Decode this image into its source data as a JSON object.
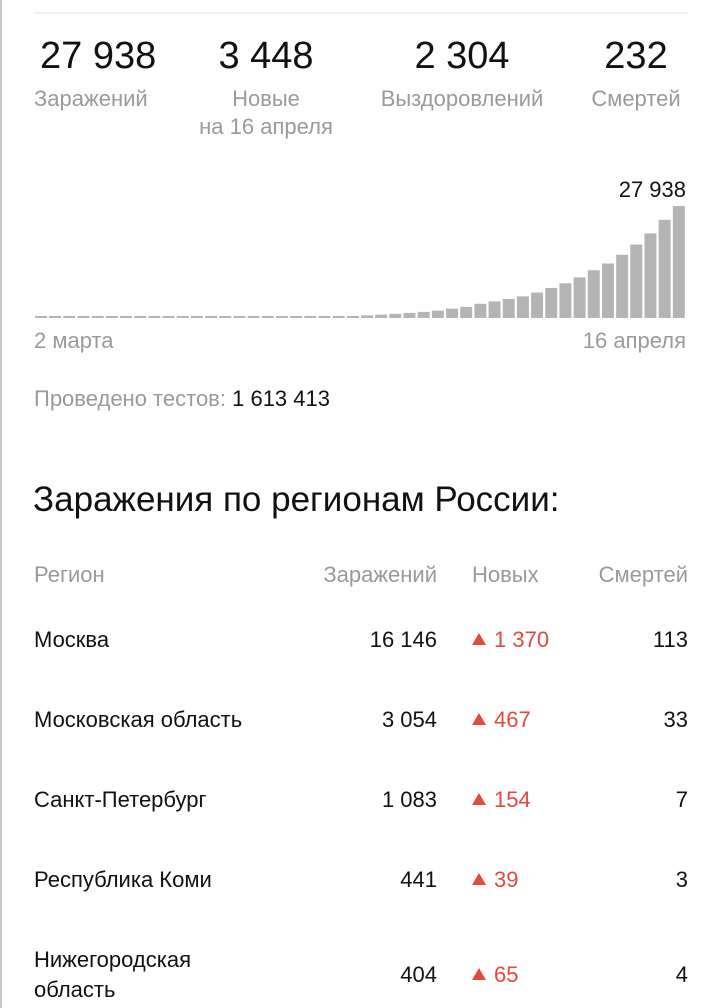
{
  "stats": {
    "infections": {
      "value": "27 938",
      "label": "Заражений"
    },
    "new_cases": {
      "value": "3 448",
      "label_line1": "Новые",
      "label_line2": "на 16 апреля"
    },
    "recovered": {
      "value": "2 304",
      "label": "Выздоровлений"
    },
    "deaths": {
      "value": "232",
      "label": "Смертей"
    }
  },
  "chart": {
    "start_label": "2 марта",
    "end_label": "16 апреля",
    "last_value_label": "27 938"
  },
  "chart_data": {
    "type": "bar",
    "title": "",
    "xlabel": "",
    "ylabel": "",
    "x_start": "2 марта",
    "x_end": "16 апреля",
    "values": [
      3,
      3,
      3,
      4,
      6,
      10,
      17,
      20,
      20,
      28,
      34,
      45,
      59,
      63,
      93,
      114,
      147,
      199,
      253,
      306,
      367,
      438,
      495,
      658,
      840,
      1036,
      1264,
      1534,
      1836,
      2337,
      2777,
      3548,
      4149,
      4731,
      5389,
      6343,
      7497,
      8672,
      10131,
      11917,
      13584,
      15770,
      18328,
      21102,
      24490,
      27938
    ],
    "ylim": [
      0,
      27938
    ]
  },
  "tests": {
    "label": "Проведено тестов:",
    "value": "1 613 413"
  },
  "regions": {
    "title": "Заражения по регионам России:",
    "headers": {
      "region": "Регион",
      "cases": "Заражений",
      "new": "Новых",
      "deaths": "Смертей"
    },
    "rows": [
      {
        "region": "Москва",
        "cases": "16 146",
        "new": "1 370",
        "deaths": "113"
      },
      {
        "region": "Московская область",
        "cases": "3 054",
        "new": "467",
        "deaths": "33"
      },
      {
        "region": "Санкт-Петербург",
        "cases": "1 083",
        "new": "154",
        "deaths": "7"
      },
      {
        "region": "Республика Коми",
        "cases": "441",
        "new": "39",
        "deaths": "3"
      },
      {
        "region_line1": "Нижегородская",
        "region_line2": "область",
        "cases": "404",
        "new": "65",
        "deaths": "4"
      }
    ]
  },
  "colors": {
    "bar": "#b4b4b4",
    "muted_text": "#9a9a9a",
    "increase": "#e34a3e"
  }
}
